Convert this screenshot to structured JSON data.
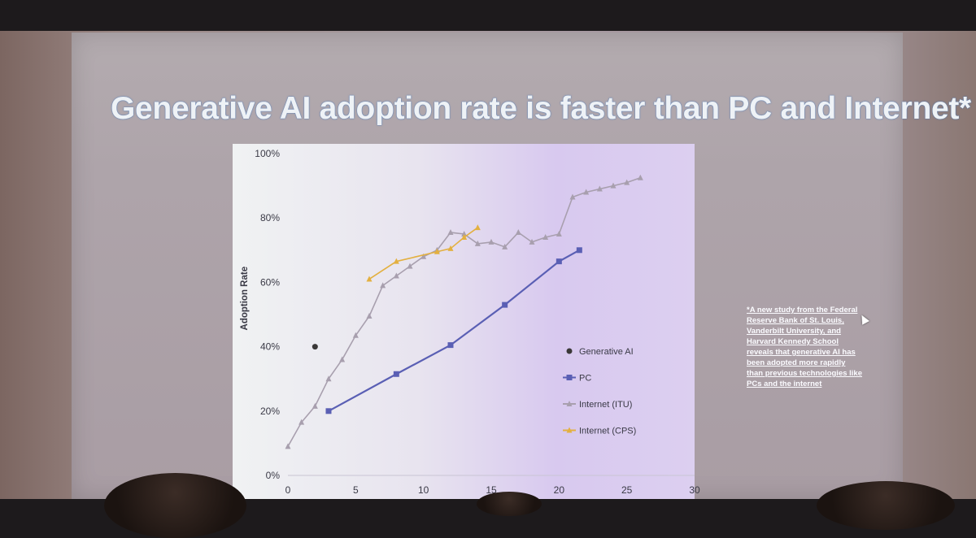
{
  "slide": {
    "title": "Generative AI adoption rate is faster than PC and Internet*",
    "footnote": "*A new study from the Federal Reserve Bank of St. Louis, Vanderbilt University, and Harvard Kennedy School reveals that generative AI has been adopted more rapidly than previous technologies like PCs and the internet"
  },
  "chart_data": {
    "type": "line",
    "title": "",
    "xlabel": "",
    "ylabel": "Adoption Rate",
    "xlim": [
      0,
      30
    ],
    "ylim": [
      0,
      100
    ],
    "x_ticks": [
      "0",
      "5",
      "10",
      "15",
      "20",
      "25",
      "30"
    ],
    "y_ticks": [
      "0%",
      "20%",
      "40%",
      "60%",
      "80%",
      "100%"
    ],
    "legend_position": "right",
    "grid": false,
    "series": [
      {
        "name": "Generative AI",
        "color": "#3a3838",
        "marker": "circle",
        "points": [
          [
            2,
            40
          ]
        ]
      },
      {
        "name": "PC",
        "color": "#5a5fb4",
        "marker": "square",
        "points": [
          [
            3,
            20
          ],
          [
            8,
            31.5
          ],
          [
            12,
            40.5
          ],
          [
            16,
            53
          ],
          [
            20,
            66.5
          ],
          [
            21.5,
            70
          ]
        ]
      },
      {
        "name": "Internet (ITU)",
        "color": "#a89fae",
        "marker": "triangle",
        "points": [
          [
            0,
            9
          ],
          [
            1,
            16.5
          ],
          [
            2,
            21.5
          ],
          [
            3,
            30
          ],
          [
            4,
            36
          ],
          [
            5,
            43.5
          ],
          [
            6,
            49.5
          ],
          [
            7,
            59
          ],
          [
            8,
            62
          ],
          [
            9,
            65
          ],
          [
            10,
            68
          ],
          [
            11,
            70
          ],
          [
            12,
            75.5
          ],
          [
            13,
            75
          ],
          [
            14,
            72
          ],
          [
            15,
            72.5
          ],
          [
            16,
            71
          ],
          [
            17,
            75.5
          ],
          [
            18,
            72.5
          ],
          [
            19,
            74
          ],
          [
            20,
            75
          ],
          [
            21,
            86.5
          ],
          [
            22,
            88
          ],
          [
            23,
            89
          ],
          [
            24,
            90
          ],
          [
            25,
            91
          ],
          [
            26,
            92.5
          ]
        ]
      },
      {
        "name": "Internet (CPS)",
        "color": "#e3b040",
        "marker": "triangle",
        "points": [
          [
            6,
            61
          ],
          [
            8,
            66.5
          ],
          [
            11,
            69.5
          ],
          [
            12,
            70.5
          ],
          [
            13,
            74
          ],
          [
            14,
            77
          ]
        ]
      }
    ]
  }
}
